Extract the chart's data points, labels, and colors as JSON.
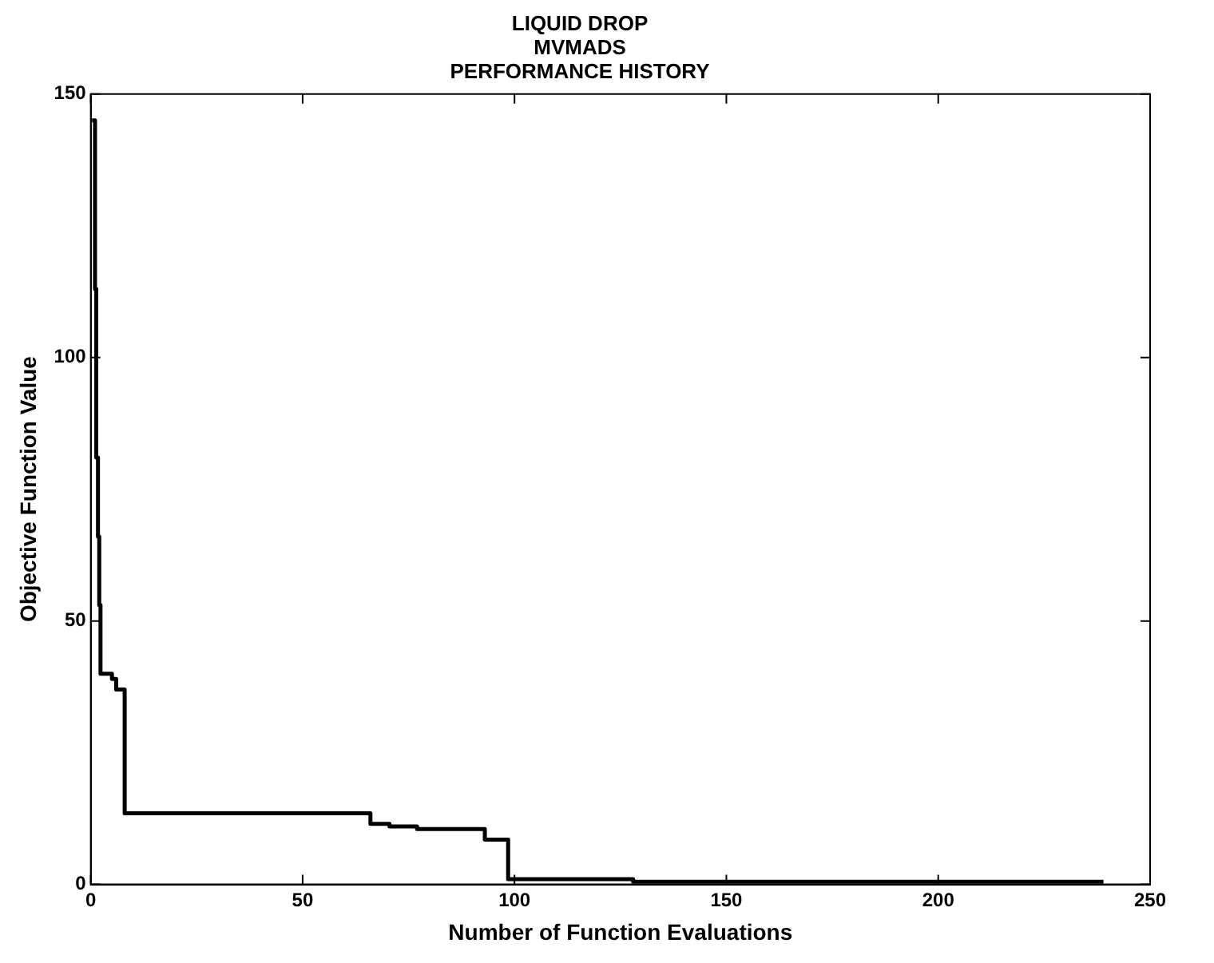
{
  "chart_data": {
    "type": "step",
    "title": "LIQUID DROP\nMVMADS\nPERFORMANCE HISTORY",
    "xlabel": "Number of Function Evaluations",
    "ylabel": "Objective Function Value",
    "x": [
      0.3,
      1,
      1.3,
      1.7,
      2,
      2.3,
      5,
      6,
      8,
      66,
      70.5,
      77,
      93,
      97.5,
      98.5,
      128,
      239
    ],
    "series": [
      {
        "color": "#000000",
        "values": [
          145,
          113,
          81,
          66,
          53,
          40,
          39,
          37,
          13.5,
          11.5,
          11,
          10.5,
          8.5,
          8.5,
          1,
          0.5,
          0.5
        ]
      }
    ],
    "xlim": [
      0,
      250
    ],
    "xticks": [
      0,
      50,
      100,
      150,
      200,
      250
    ],
    "ylim": [
      0,
      150
    ],
    "yticks": [
      0,
      50,
      100,
      150
    ],
    "grid": false,
    "legend": false,
    "marker": "none",
    "line_style": "solid"
  }
}
